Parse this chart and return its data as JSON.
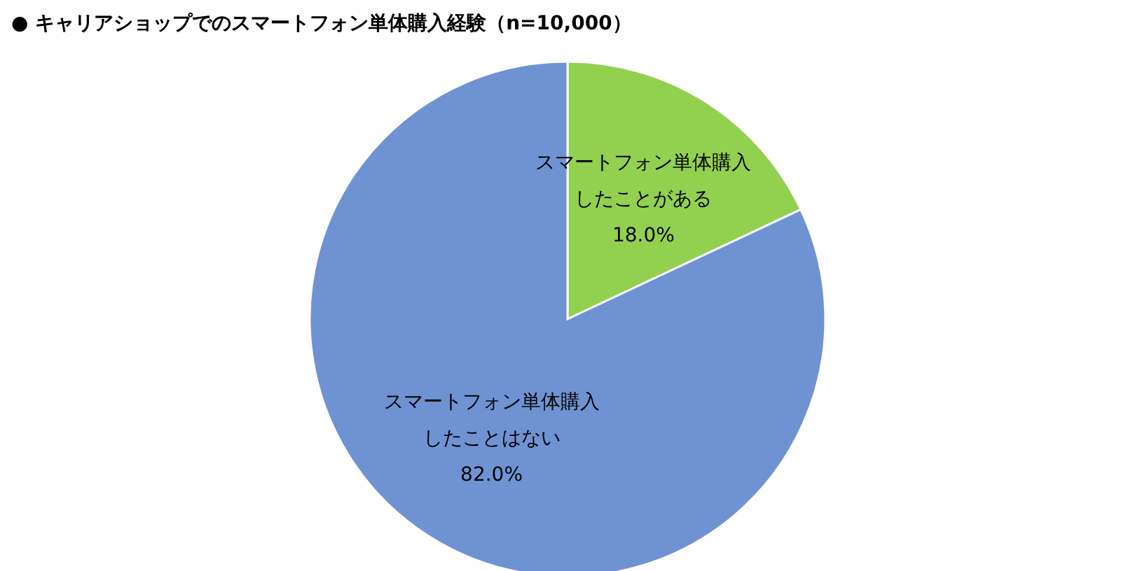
{
  "chart_data": {
    "type": "pie",
    "title": "● キャリアショップでのスマートフォン単体購入経験（n=10,000）",
    "categories": [
      "スマートフォン単体購入したことがある",
      "スマートフォン単体購入したことはない"
    ],
    "values": [
      18.0,
      82.0
    ],
    "colors": [
      "#92d050",
      "#6f93d2"
    ],
    "value_labels": [
      "18.0%",
      "82.0%"
    ],
    "legend": false
  }
}
